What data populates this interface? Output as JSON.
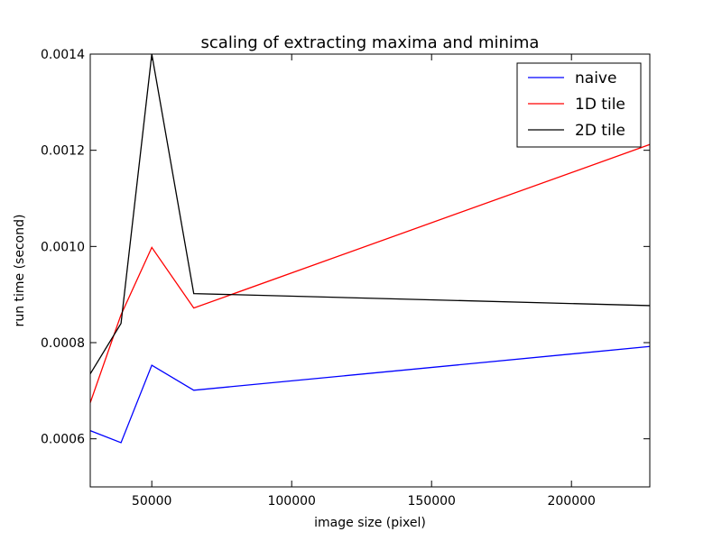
{
  "chart_data": {
    "type": "line",
    "title": "scaling of extracting maxima and minima",
    "xlabel": "image size (pixel)",
    "ylabel": "run time (second)",
    "xlim": [
      28000,
      228000
    ],
    "ylim": [
      0.0005,
      0.0014
    ],
    "xticks": [
      50000,
      100000,
      150000,
      200000
    ],
    "xtick_labels": [
      "50000",
      "100000",
      "150000",
      "200000"
    ],
    "yticks": [
      0.0006,
      0.0008,
      0.001,
      0.0012,
      0.0014
    ],
    "ytick_labels": [
      "0.0006",
      "0.0008",
      "0.0010",
      "0.0012",
      "0.0014"
    ],
    "grid": false,
    "legend_position": "top-right",
    "x": [
      28000,
      39000,
      50000,
      65000,
      228000
    ],
    "series": [
      {
        "name": "naive",
        "color": "#0000ff",
        "values": [
          0.000617,
          0.000592,
          0.000753,
          0.000701,
          0.000792
        ]
      },
      {
        "name": "1D tile",
        "color": "#ff0000",
        "values": [
          0.000675,
          0.000858,
          0.000998,
          0.000872,
          0.001212
        ]
      },
      {
        "name": "2D tile",
        "color": "#000000",
        "values": [
          0.000735,
          0.00084,
          0.0014,
          0.000902,
          0.000877
        ]
      }
    ]
  }
}
